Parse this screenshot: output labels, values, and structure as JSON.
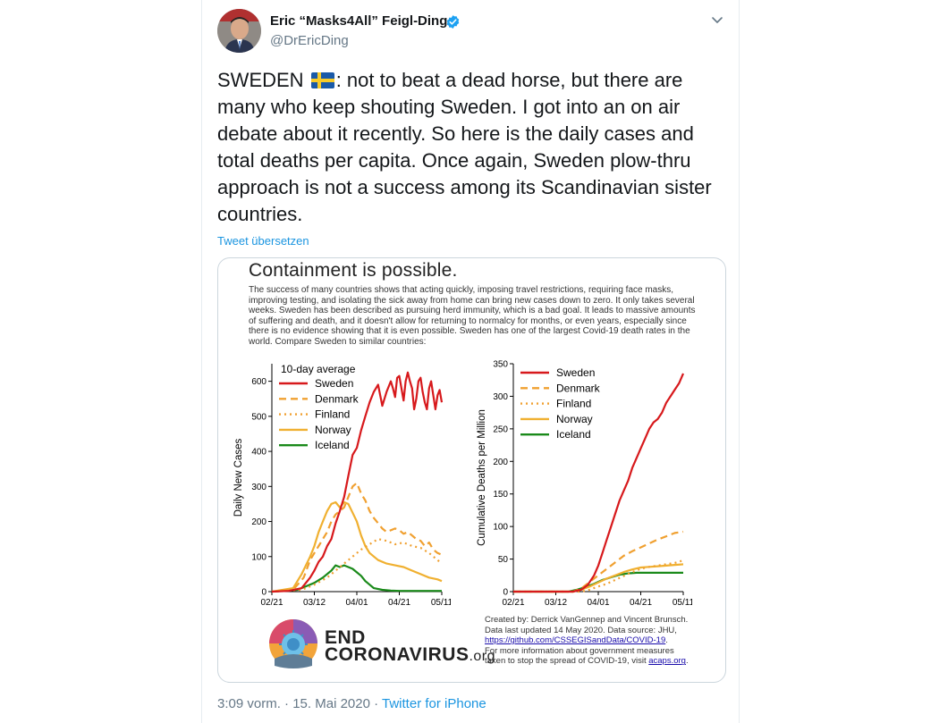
{
  "author": {
    "name": "Eric “Masks4All” Feigl-Ding",
    "handle": "@DrEricDing",
    "verified": true
  },
  "icons": {
    "verified": "verified-badge-icon",
    "menu": "chevron-down-icon",
    "flag": "sweden-flag-icon"
  },
  "tweet": {
    "text_before_flag": "SWEDEN",
    "text_after_flag": ": not to beat a dead horse, but there are many who keep shouting Sweden. I got into an on air debate about it recently. So here is the daily cases and total deaths per capita. Once again, Sweden plow-thru approach is not a success among its Scandinavian sister countries.",
    "translate_label": "Tweet übersetzen"
  },
  "media": {
    "title": "Containment is possible.",
    "paragraph": "The success of many countries shows that acting quickly, imposing travel restrictions, requiring face masks, improving testing, and isolating the sick away from home can bring new cases down to zero. It only takes several weeks. Sweden has been described as pursuing herd immunity, which is a bad goal. It leads to massive amounts of suffering and death, and it doesn't allow for returning to normalcy for months, or even years, especially since there is no evidence showing that it is even possible. Sweden has one of the largest Covid-19 death rates in the world. Compare Sweden to similar countries:",
    "credits_line1": "Created by: Derrick VanGennep and Vincent Brunsch.",
    "credits_line2": "Data last updated  14 May 2020. Data source: JHU,",
    "credits_link1": "https://github.com/CSSEGISandData/COVID-19",
    "credits_line3": "For more information about government measures",
    "credits_line4": "taken to stop the spread of COVID-19, visit",
    "credits_link2": "acaps.org",
    "logo_line1": "END",
    "logo_line2": "CORONAVIRUS",
    "logo_suffix": ".org"
  },
  "footer": {
    "time": "3:09 vorm.",
    "separator1": " · ",
    "date": "15. Mai 2020",
    "separator2": " · ",
    "source": "Twitter for iPhone"
  },
  "colors": {
    "Sweden": "#d7191c",
    "Denmark": "#f0a030",
    "Finland": "#f0a030",
    "Norway": "#f0b030",
    "Iceland": "#1a8a1a",
    "link": "#1b95e0"
  },
  "chart_data": [
    {
      "type": "line",
      "subtitle": "10-day average",
      "ylabel": "Daily New Cases",
      "xlabel": "",
      "xlim": [
        0,
        80
      ],
      "ylim": [
        0,
        650
      ],
      "xticks": [
        {
          "x": 0,
          "label": "02/21"
        },
        {
          "x": 20,
          "label": "03/12"
        },
        {
          "x": 40,
          "label": "04/01"
        },
        {
          "x": 60,
          "label": "04/21"
        },
        {
          "x": 80,
          "label": "05/11"
        }
      ],
      "yticks": [
        0,
        100,
        200,
        300,
        400,
        500,
        600
      ],
      "legend": "top-left",
      "series": [
        {
          "name": "Sweden",
          "style": "solid",
          "points": [
            [
              0,
              0
            ],
            [
              8,
              2
            ],
            [
              14,
              10
            ],
            [
              18,
              40
            ],
            [
              20,
              60
            ],
            [
              22,
              85
            ],
            [
              24,
              100
            ],
            [
              26,
              130
            ],
            [
              28,
              150
            ],
            [
              30,
              195
            ],
            [
              32,
              230
            ],
            [
              34,
              270
            ],
            [
              36,
              330
            ],
            [
              38,
              390
            ],
            [
              40,
              410
            ],
            [
              42,
              460
            ],
            [
              44,
              500
            ],
            [
              46,
              540
            ],
            [
              48,
              570
            ],
            [
              50,
              590
            ],
            [
              52,
              530
            ],
            [
              54,
              570
            ],
            [
              56,
              600
            ],
            [
              57,
              580
            ],
            [
              58,
              555
            ],
            [
              59,
              610
            ],
            [
              60,
              615
            ],
            [
              61,
              580
            ],
            [
              62,
              545
            ],
            [
              63,
              600
            ],
            [
              64,
              625
            ],
            [
              65,
              600
            ],
            [
              66,
              580
            ],
            [
              67,
              520
            ],
            [
              68,
              550
            ],
            [
              69,
              600
            ],
            [
              70,
              610
            ],
            [
              71,
              570
            ],
            [
              72,
              540
            ],
            [
              73,
              520
            ],
            [
              74,
              580
            ],
            [
              75,
              600
            ],
            [
              76,
              560
            ],
            [
              77,
              520
            ],
            [
              78,
              560
            ],
            [
              79,
              575
            ],
            [
              80,
              540
            ]
          ]
        },
        {
          "name": "Denmark",
          "style": "dashed",
          "points": [
            [
              0,
              0
            ],
            [
              10,
              5
            ],
            [
              15,
              40
            ],
            [
              18,
              90
            ],
            [
              20,
              110
            ],
            [
              22,
              130
            ],
            [
              24,
              150
            ],
            [
              26,
              170
            ],
            [
              28,
              200
            ],
            [
              30,
              220
            ],
            [
              32,
              230
            ],
            [
              34,
              240
            ],
            [
              36,
              270
            ],
            [
              38,
              300
            ],
            [
              40,
              310
            ],
            [
              42,
              280
            ],
            [
              44,
              260
            ],
            [
              46,
              230
            ],
            [
              48,
              210
            ],
            [
              50,
              195
            ],
            [
              52,
              180
            ],
            [
              54,
              170
            ],
            [
              56,
              175
            ],
            [
              58,
              180
            ],
            [
              60,
              175
            ],
            [
              62,
              165
            ],
            [
              64,
              170
            ],
            [
              66,
              160
            ],
            [
              68,
              150
            ],
            [
              70,
              145
            ],
            [
              72,
              130
            ],
            [
              74,
              140
            ],
            [
              76,
              120
            ],
            [
              78,
              110
            ],
            [
              80,
              105
            ]
          ]
        },
        {
          "name": "Finland",
          "style": "dotted",
          "points": [
            [
              0,
              0
            ],
            [
              14,
              5
            ],
            [
              20,
              20
            ],
            [
              26,
              40
            ],
            [
              30,
              60
            ],
            [
              34,
              80
            ],
            [
              38,
              100
            ],
            [
              42,
              120
            ],
            [
              46,
              135
            ],
            [
              50,
              150
            ],
            [
              54,
              145
            ],
            [
              58,
              135
            ],
            [
              62,
              140
            ],
            [
              66,
              130
            ],
            [
              70,
              125
            ],
            [
              74,
              110
            ],
            [
              78,
              90
            ],
            [
              80,
              80
            ]
          ]
        },
        {
          "name": "Norway",
          "style": "solid",
          "points": [
            [
              0,
              0
            ],
            [
              10,
              10
            ],
            [
              14,
              50
            ],
            [
              18,
              100
            ],
            [
              20,
              130
            ],
            [
              22,
              170
            ],
            [
              24,
              200
            ],
            [
              26,
              230
            ],
            [
              28,
              250
            ],
            [
              30,
              255
            ],
            [
              32,
              240
            ],
            [
              34,
              255
            ],
            [
              36,
              250
            ],
            [
              38,
              225
            ],
            [
              40,
              200
            ],
            [
              42,
              160
            ],
            [
              44,
              130
            ],
            [
              46,
              110
            ],
            [
              50,
              90
            ],
            [
              54,
              80
            ],
            [
              58,
              75
            ],
            [
              62,
              70
            ],
            [
              66,
              60
            ],
            [
              70,
              50
            ],
            [
              74,
              40
            ],
            [
              78,
              35
            ],
            [
              80,
              30
            ]
          ]
        },
        {
          "name": "Iceland",
          "style": "solid",
          "points": [
            [
              0,
              0
            ],
            [
              12,
              5
            ],
            [
              16,
              15
            ],
            [
              20,
              25
            ],
            [
              24,
              40
            ],
            [
              28,
              60
            ],
            [
              30,
              75
            ],
            [
              32,
              70
            ],
            [
              34,
              75
            ],
            [
              36,
              70
            ],
            [
              38,
              65
            ],
            [
              40,
              55
            ],
            [
              42,
              45
            ],
            [
              44,
              30
            ],
            [
              46,
              20
            ],
            [
              48,
              10
            ],
            [
              52,
              5
            ],
            [
              56,
              3
            ],
            [
              60,
              2
            ],
            [
              70,
              2
            ],
            [
              80,
              2
            ]
          ]
        }
      ]
    },
    {
      "type": "line",
      "ylabel": "Cumulative Deaths per Million",
      "xlabel": "",
      "xlim": [
        0,
        80
      ],
      "ylim": [
        0,
        350
      ],
      "xticks": [
        {
          "x": 0,
          "label": "02/21"
        },
        {
          "x": 20,
          "label": "03/12"
        },
        {
          "x": 40,
          "label": "04/01"
        },
        {
          "x": 60,
          "label": "04/21"
        },
        {
          "x": 80,
          "label": "05/11"
        }
      ],
      "yticks": [
        0,
        50,
        100,
        150,
        200,
        250,
        300,
        350
      ],
      "legend": "top-left",
      "series": [
        {
          "name": "Sweden",
          "style": "solid",
          "points": [
            [
              0,
              0
            ],
            [
              28,
              0
            ],
            [
              32,
              3
            ],
            [
              35,
              10
            ],
            [
              38,
              25
            ],
            [
              40,
              40
            ],
            [
              42,
              60
            ],
            [
              44,
              80
            ],
            [
              46,
              100
            ],
            [
              48,
              120
            ],
            [
              50,
              140
            ],
            [
              52,
              155
            ],
            [
              54,
              170
            ],
            [
              56,
              190
            ],
            [
              58,
              205
            ],
            [
              60,
              220
            ],
            [
              62,
              235
            ],
            [
              64,
              250
            ],
            [
              66,
              260
            ],
            [
              68,
              265
            ],
            [
              70,
              275
            ],
            [
              72,
              290
            ],
            [
              74,
              300
            ],
            [
              76,
              310
            ],
            [
              78,
              320
            ],
            [
              80,
              335
            ]
          ]
        },
        {
          "name": "Denmark",
          "style": "dashed",
          "points": [
            [
              0,
              0
            ],
            [
              28,
              0
            ],
            [
              32,
              5
            ],
            [
              36,
              15
            ],
            [
              40,
              25
            ],
            [
              44,
              35
            ],
            [
              48,
              45
            ],
            [
              52,
              55
            ],
            [
              56,
              62
            ],
            [
              60,
              68
            ],
            [
              64,
              74
            ],
            [
              68,
              80
            ],
            [
              72,
              85
            ],
            [
              76,
              90
            ],
            [
              80,
              92
            ]
          ]
        },
        {
          "name": "Finland",
          "style": "dotted",
          "points": [
            [
              0,
              0
            ],
            [
              32,
              0
            ],
            [
              36,
              3
            ],
            [
              40,
              8
            ],
            [
              44,
              12
            ],
            [
              48,
              18
            ],
            [
              52,
              24
            ],
            [
              56,
              30
            ],
            [
              60,
              35
            ],
            [
              64,
              38
            ],
            [
              68,
              40
            ],
            [
              72,
              42
            ],
            [
              76,
              44
            ],
            [
              80,
              48
            ]
          ]
        },
        {
          "name": "Norway",
          "style": "solid",
          "points": [
            [
              0,
              0
            ],
            [
              28,
              0
            ],
            [
              32,
              3
            ],
            [
              36,
              8
            ],
            [
              40,
              14
            ],
            [
              44,
              20
            ],
            [
              48,
              25
            ],
            [
              52,
              30
            ],
            [
              56,
              34
            ],
            [
              60,
              37
            ],
            [
              64,
              38
            ],
            [
              68,
              39
            ],
            [
              72,
              40
            ],
            [
              76,
              41
            ],
            [
              80,
              42
            ]
          ]
        },
        {
          "name": "Iceland",
          "style": "solid",
          "points": [
            [
              0,
              0
            ],
            [
              26,
              0
            ],
            [
              30,
              3
            ],
            [
              34,
              7
            ],
            [
              38,
              12
            ],
            [
              42,
              18
            ],
            [
              46,
              22
            ],
            [
              50,
              26
            ],
            [
              54,
              28
            ],
            [
              58,
              29
            ],
            [
              80,
              29
            ]
          ]
        }
      ]
    }
  ]
}
